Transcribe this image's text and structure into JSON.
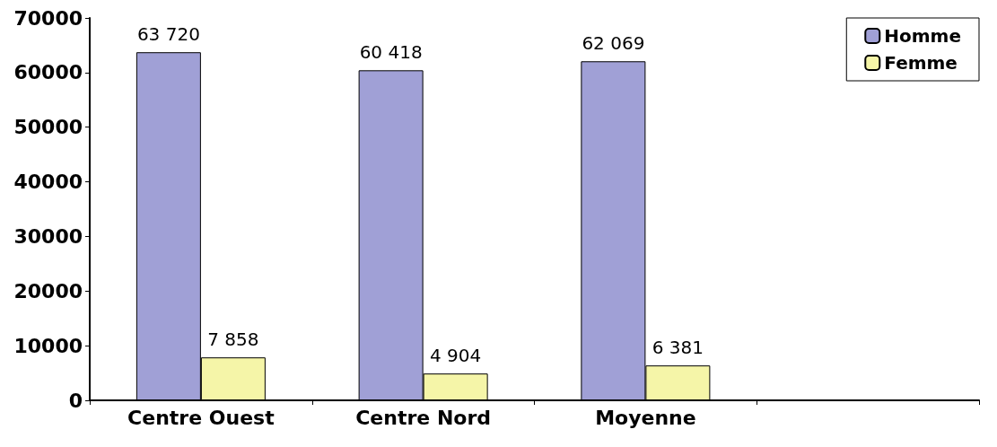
{
  "chart_data": {
    "type": "bar",
    "categories": [
      "Centre Ouest",
      "Centre Nord",
      "Moyenne",
      null
    ],
    "series": [
      {
        "name": "Homme",
        "color": "#a0a0d6",
        "values": [
          63720,
          60418,
          62069,
          null
        ],
        "value_labels": [
          "63 720",
          "60 418",
          "62 069",
          null
        ]
      },
      {
        "name": "Femme",
        "color": "#f5f5a8",
        "values": [
          7858,
          4904,
          6381,
          null
        ],
        "value_labels": [
          "7 858",
          "4 904",
          "6 381",
          null
        ]
      }
    ],
    "ylim": [
      0,
      70000
    ],
    "yticks": [
      0,
      10000,
      20000,
      30000,
      40000,
      50000,
      60000,
      70000
    ],
    "grid": false,
    "legend": "top right"
  }
}
